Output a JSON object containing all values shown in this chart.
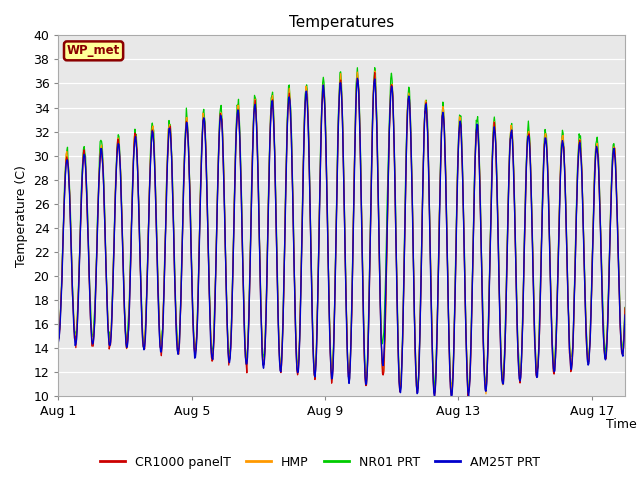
{
  "title": "Temperatures",
  "ylabel": "Temperature (C)",
  "xlabel": "Time",
  "ylim": [
    10,
    40
  ],
  "yticks": [
    10,
    12,
    14,
    16,
    18,
    20,
    22,
    24,
    26,
    28,
    30,
    32,
    34,
    36,
    38,
    40
  ],
  "xtick_labels": [
    "Aug 1",
    "Aug 5",
    "Aug 9",
    "Aug 13",
    "Aug 17"
  ],
  "xtick_positions": [
    0,
    4,
    8,
    12,
    16
  ],
  "xlim": [
    0,
    17
  ],
  "annotation_text": "WP_met",
  "annotation_box_color": "#FFFF99",
  "annotation_border_color": "#8B0000",
  "series_colors": [
    "#CC0000",
    "#FF9900",
    "#00CC00",
    "#0000CC"
  ],
  "series_labels": [
    "CR1000 panelT",
    "HMP",
    "NR01 PRT",
    "AM25T PRT"
  ],
  "fig_bg_color": "#FFFFFF",
  "plot_bg_color": "#E8E8E8",
  "grid_color": "#FFFFFF",
  "n_points": 816
}
